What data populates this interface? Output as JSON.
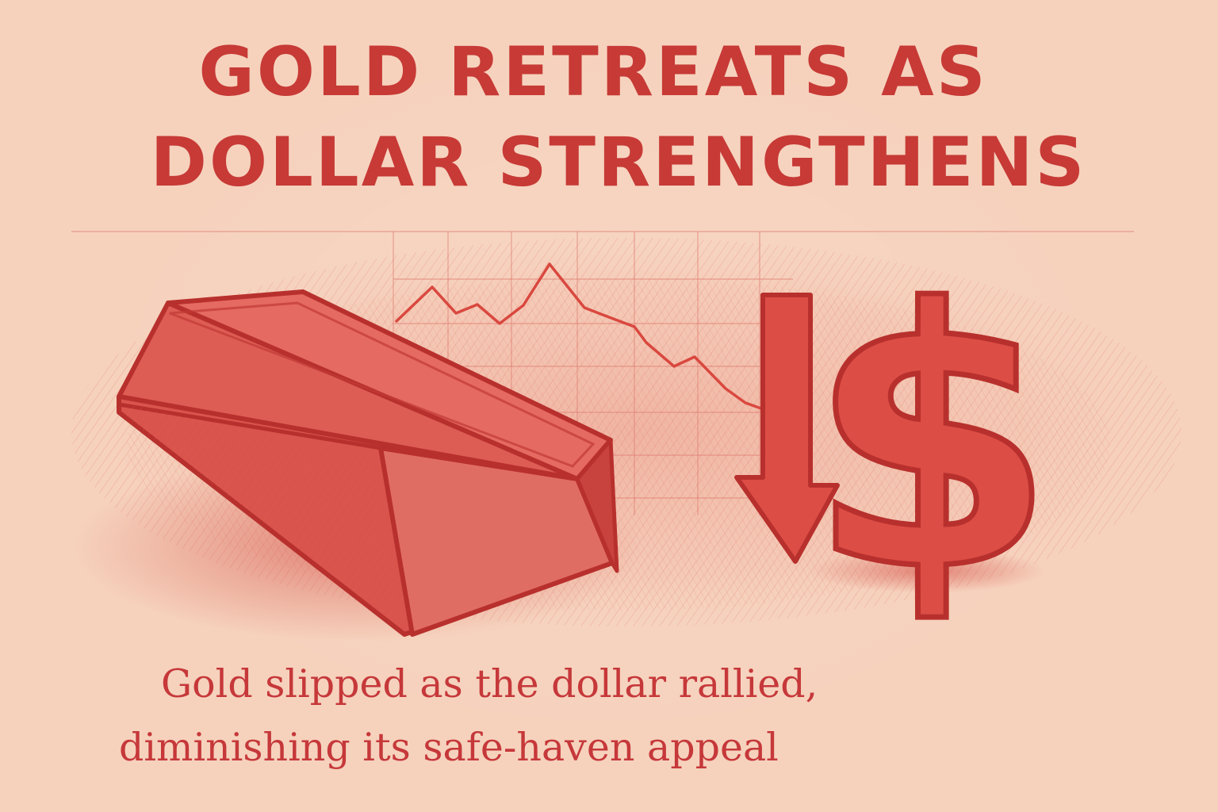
{
  "headline": {
    "line1": "GOLD RETREATS AS",
    "line2": "DOLLAR STRENGTHENS"
  },
  "illustration": {
    "icons": [
      "gold-bar-icon",
      "falling-line-chart-icon",
      "down-arrow-icon",
      "dollar-sign-icon"
    ],
    "dollar_symbol": "$"
  },
  "subtitle": {
    "line1": "Gold slipped as the dollar rallied,",
    "line2": "diminishing its safe-haven appeal"
  },
  "colors": {
    "background": "#f6d2bd",
    "accent": "#c73a36",
    "sketch_fill": "#d9554f"
  }
}
